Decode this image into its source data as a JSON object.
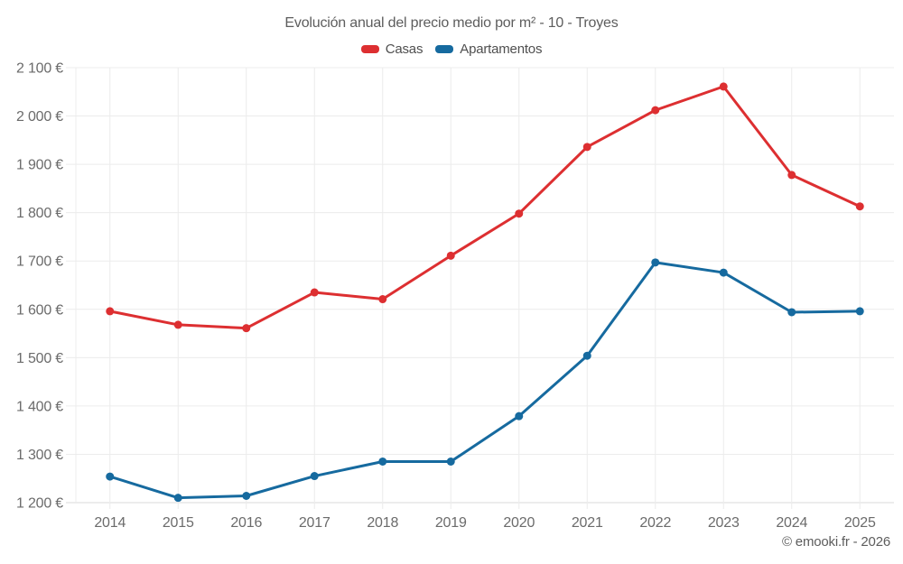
{
  "title": "Evolución anual del precio medio por m² - 10 - Troyes",
  "footer": "© emooki.fr - 2026",
  "colors": {
    "casas": "#dd2f31",
    "apartamentos": "#166a9f",
    "grid": "#ececec",
    "axis": "#d8d8d8",
    "axis_text": "#6b6b6b",
    "title_text": "#5d5d5d"
  },
  "chart_data": {
    "type": "line",
    "title": "Evolución anual del precio medio por m² - 10 - Troyes",
    "categories": [
      "2014",
      "2015",
      "2016",
      "2017",
      "2018",
      "2019",
      "2020",
      "2021",
      "2022",
      "2023",
      "2024",
      "2025"
    ],
    "series": [
      {
        "name": "Casas",
        "color": "#dd2f31",
        "values": [
          1596,
          1568,
          1561,
          1635,
          1621,
          1711,
          1798,
          1936,
          2012,
          2061,
          1878,
          1813
        ]
      },
      {
        "name": "Apartamentos",
        "color": "#166a9f",
        "values": [
          1254,
          1210,
          1214,
          1255,
          1285,
          1285,
          1379,
          1504,
          1697,
          1676,
          1594,
          1596
        ]
      }
    ],
    "ylim": [
      1200,
      2100
    ],
    "ytick_step": 100,
    "yticks": [
      {
        "value": 1200,
        "label": "1 200 €"
      },
      {
        "value": 1300,
        "label": "1 300 €"
      },
      {
        "value": 1400,
        "label": "1 400 €"
      },
      {
        "value": 1500,
        "label": "1 500 €"
      },
      {
        "value": 1600,
        "label": "1 600 €"
      },
      {
        "value": 1700,
        "label": "1 700 €"
      },
      {
        "value": 1800,
        "label": "1 800 €"
      },
      {
        "value": 1900,
        "label": "1 900 €"
      },
      {
        "value": 2000,
        "label": "2 000 €"
      },
      {
        "value": 2100,
        "label": "2 100 €"
      }
    ],
    "grid": true,
    "legend_position": "top",
    "xlabel": "",
    "ylabel": ""
  }
}
